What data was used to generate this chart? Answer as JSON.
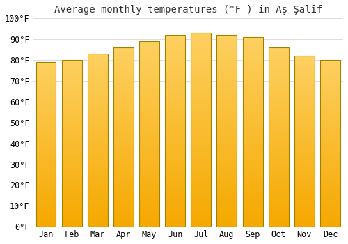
{
  "title": "Average monthly temperatures (°F ) in Aş Şalīf",
  "months": [
    "Jan",
    "Feb",
    "Mar",
    "Apr",
    "May",
    "Jun",
    "Jul",
    "Aug",
    "Sep",
    "Oct",
    "Nov",
    "Dec"
  ],
  "values": [
    79,
    80,
    83,
    86,
    89,
    92,
    93,
    92,
    91,
    86,
    82,
    80
  ],
  "bar_color_top": "#FDD060",
  "bar_color_bottom": "#F5A800",
  "bar_edge_color": "#A08000",
  "background_color": "#FFFFFF",
  "plot_bg_color": "#FFFFFF",
  "ylim": [
    0,
    100
  ],
  "ytick_step": 10,
  "grid_color": "#DDDDDD",
  "title_fontsize": 10,
  "tick_fontsize": 8.5
}
